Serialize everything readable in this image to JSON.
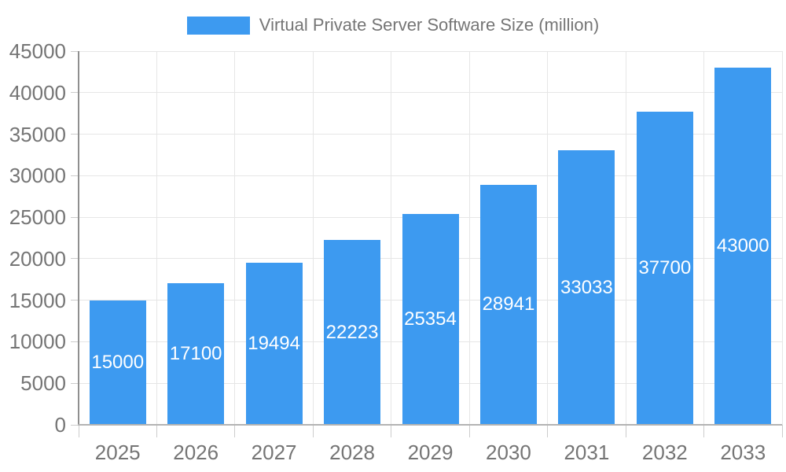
{
  "chart_data": {
    "type": "bar",
    "title": "Virtual Private Server Software Size (million)",
    "legend": {
      "label": "Virtual Private Server Software Size (million)",
      "position": "top"
    },
    "categories": [
      "2025",
      "2026",
      "2027",
      "2028",
      "2029",
      "2030",
      "2031",
      "2032",
      "2033"
    ],
    "values": [
      15000,
      17100,
      19494,
      22223,
      25354,
      28941,
      33033,
      37700,
      43000
    ],
    "value_labels": [
      "15000",
      "17100",
      "19494",
      "22223",
      "25354",
      "28941",
      "33033",
      "37700",
      "43000"
    ],
    "y_tick_labels": [
      "0",
      "5000",
      "10000",
      "15000",
      "20000",
      "25000",
      "30000",
      "35000",
      "40000",
      "45000"
    ],
    "xlabel": "",
    "ylabel": "",
    "ylim": [
      0,
      45000
    ],
    "ytick_step": 5000,
    "grid": true,
    "bar_labels_position": "center-inside",
    "colors": {
      "bar": "#3D9AF0",
      "bar_label": "#FFFFFF",
      "axis_text": "#757575",
      "grid_line": "#E6E6E6",
      "axis_line_y": "#8F8F8F",
      "axis_line_x": "#B3B3B3",
      "tick_mark": "#CCCCCC",
      "background": "#FFFFFF"
    }
  }
}
